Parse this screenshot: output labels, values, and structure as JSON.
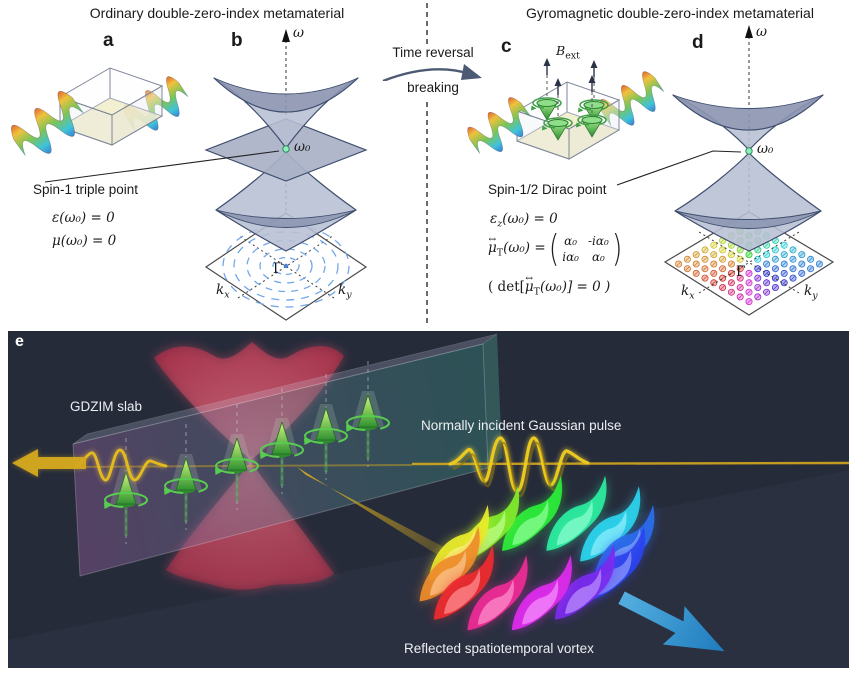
{
  "colors": {
    "background": "#ffffff",
    "panel_e_background": "#262b3a",
    "band_fill": "#b7bfd3",
    "band_inner": "#8b94b0",
    "band_stroke": "#3f4e6e",
    "kplane_circle_blue": "#74a7e8",
    "triple_point_green": "#8ef0c0",
    "spin_green": "#3fae46",
    "beam_yellow": "#d4a81e",
    "dirac_cone_red": "#e04a63",
    "reflected_arrow_blue": "#2f9bd6",
    "text_dark": "#1a1a1a",
    "text_light": "#eceef2"
  },
  "top": {
    "left": {
      "title": "Ordinary double-zero-index metamaterial",
      "panel_a_label": "a",
      "panel_b_label": "b",
      "omega_axis": "ω",
      "omega0": "ω₀",
      "gamma": "Γ",
      "kx_base": "k",
      "kx_sub": "x",
      "ky_base": "k",
      "ky_sub": "y",
      "callout": "Spin-1 triple point",
      "eq1": "ε(ω₀) = 0",
      "eq2": "μ(ω₀) = 0"
    },
    "divider": {
      "line1": "Time reversal",
      "line2": "breaking"
    },
    "right": {
      "title": "Gyromagnetic double-zero-index metamaterial",
      "panel_c_label": "c",
      "panel_d_label": "d",
      "b_ext_base": "B",
      "b_ext_sub": "ext",
      "omega_axis": "ω",
      "omega0": "ω₀",
      "gamma": "Γ",
      "kx_base": "k",
      "kx_sub": "x",
      "ky_base": "k",
      "ky_sub": "y",
      "callout": "Spin-1/2 Dirac point",
      "eq1_pre": "ε",
      "eq1_sub": "z",
      "eq1_post": "(ω₀) = 0",
      "eq2_arrow": "↔",
      "eq2_mu": "μ",
      "eq2_sub": "T",
      "eq2_post": "(ω₀) =",
      "matrix": {
        "r1c1": "α₀",
        "r1c2": "-iα₀",
        "r2c1": "iα₀",
        "r2c2": "α₀"
      },
      "eq3_pre": "( det[",
      "eq3_arrow": "↔",
      "eq3_mu": "μ",
      "eq3_sub": "T",
      "eq3_post": "(ω₀)] = 0 )"
    }
  },
  "panel_e": {
    "label": "e",
    "slab_label": "GDZIM slab",
    "incident_label": "Normally incident Gaussian pulse",
    "reflected_label": "Reflected spatiotemporal vortex"
  }
}
